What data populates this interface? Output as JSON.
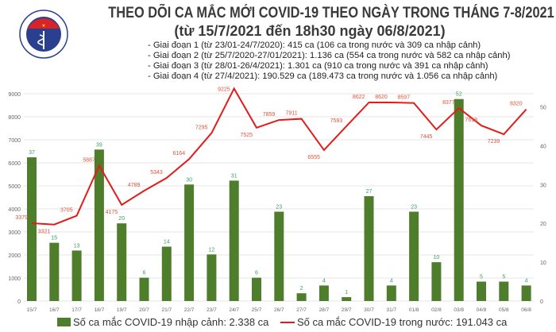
{
  "header": {
    "title": "THEO DÕI CA MẮC MỚI COVID-19 THEO NGÀY TRONG THÁNG 7-8/2021",
    "subtitle": "(từ 15/7/2021 đến 18h30 ngày 06/8/2021)",
    "logo_text": "BỘ Y TẾ",
    "notes": [
      "- Giai đoạn 1 (từ 23/01-24/7/2020): 415 ca (106 ca trong nước và 309 ca nhập cảnh)",
      "- Giai đoạn 2 (từ 25/7/2020-27/01/2021): 1.136 ca (554 ca trong nước và 582 ca nhập cảnh)",
      "- Giai đoạn 3 (từ 28/01-26/4/2021): 1.301 ca (910 ca trong nước và 391 ca nhập cảnh)",
      "- Giai đoạn 4 (từ 27/4/2021): 190.529 ca (189.473 ca trong nước và 1.056 ca nhập cảnh)"
    ]
  },
  "chart_data": {
    "type": "bar+line",
    "categories": [
      "15/7",
      "16/7",
      "17/7",
      "18/7",
      "19/7",
      "20/7",
      "21/7",
      "22/7",
      "23/7",
      "24/7",
      "25/7",
      "26/7",
      "27/7",
      "28/7",
      "29/7",
      "30/7",
      "31/7",
      "01/8",
      "02/8",
      "03/8",
      "04/8",
      "05/8",
      "06/8"
    ],
    "series": [
      {
        "name": "Số ca mắc COVID-19 nhập cảnh: 2.338 ca",
        "type": "bar",
        "axis": "right",
        "color": "#4e7d2c",
        "label_color": "#3aa35a",
        "values": [
          37,
          15,
          13,
          39,
          20,
          6,
          14,
          30,
          12,
          31,
          6,
          23,
          2,
          4,
          1,
          27,
          4,
          23,
          10,
          52,
          5,
          5,
          4
        ]
      },
      {
        "name": "Số ca mắc COVID-19 trong nước: 191.043 ca",
        "type": "line",
        "axis": "left",
        "color": "#e31b1b",
        "label_color": "#e0533a",
        "values": [
          3379,
          3321,
          3705,
          5887,
          4175,
          4789,
          5343,
          6164,
          7295,
          9225,
          7525,
          7859,
          7911,
          6555,
          7593,
          8622,
          8620,
          8597,
          7445,
          8377,
          7618,
          7239,
          8320
        ]
      }
    ],
    "y_left": {
      "range": [
        0,
        9000
      ],
      "ticks": [
        "0",
        "1000",
        "2000",
        "3000",
        "4000",
        "5000",
        "6000",
        "7000",
        "8000",
        "9000"
      ]
    },
    "y_right": {
      "range": [
        0,
        53.5
      ],
      "ticks": [
        "0",
        "10",
        "20",
        "30",
        "40",
        "50"
      ]
    },
    "grid": true,
    "legend": "bottom"
  }
}
